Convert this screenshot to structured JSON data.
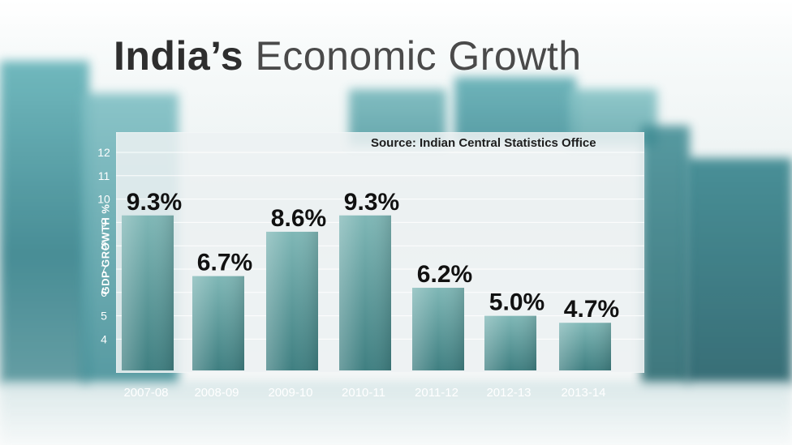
{
  "title_bold": "India’s",
  "title_light": "Economic Growth",
  "colors": {
    "bar_top": "#7fb7b6",
    "bar_bottom": "#3f7f81",
    "panel": "#ecf1f2",
    "bg_teal": "#2f8f95",
    "bg_dark": "#1f5f6a"
  },
  "chart_data": {
    "type": "bar",
    "title": "India’s Economic Growth",
    "source": "Source: Indian Central Statistics Office",
    "xlabel": "",
    "ylabel": "GDP GROWTH %",
    "ylim": [
      3,
      12
    ],
    "yticks": [
      4,
      5,
      6,
      7,
      8,
      9,
      10,
      11,
      12
    ],
    "grid": true,
    "categories": [
      "2007-08",
      "2008-09",
      "2009-10",
      "2010-11",
      "2011-12",
      "2012-13",
      "2013-14"
    ],
    "values": [
      9.3,
      6.7,
      8.6,
      9.3,
      6.2,
      5.0,
      4.7
    ],
    "data_labels": [
      "9.3%",
      "6.7%",
      "8.6%",
      "9.3%",
      "6.2%",
      "5.0%",
      "4.7%"
    ]
  }
}
